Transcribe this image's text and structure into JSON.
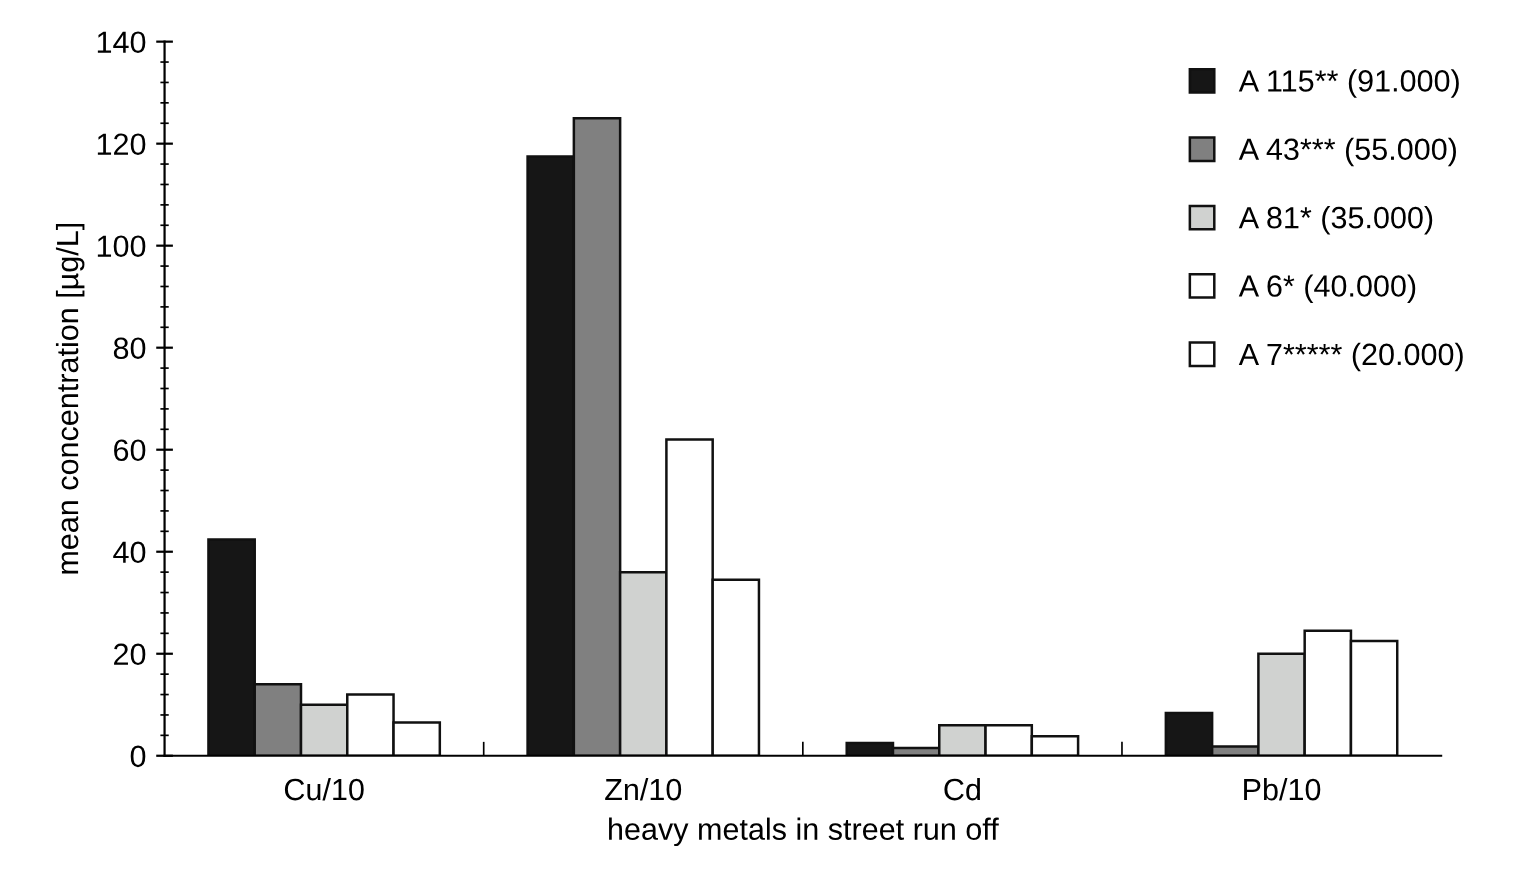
{
  "chart_data": {
    "type": "bar",
    "xlabel": "heavy metals in street run off",
    "ylabel": "mean concentration [µg/L]",
    "categories": [
      "Cu/10",
      "Zn/10",
      "Cd",
      "Pb/10"
    ],
    "series": [
      {
        "name": "A 115** (91.000)",
        "color": "#161616",
        "values": [
          42.4,
          117.5,
          2.5,
          8.4
        ]
      },
      {
        "name": "A 43*** (55.000)",
        "color": "#808080",
        "values": [
          14,
          125,
          1.5,
          1.8
        ]
      },
      {
        "name": "A 81* (35.000)",
        "color": "#d0d2d0",
        "values": [
          10,
          36,
          6,
          20
        ]
      },
      {
        "name": "A 6* (40.000)",
        "color": "#ffffff",
        "values": [
          12,
          62,
          6,
          24.5
        ]
      },
      {
        "name": "A 7***** (20.000)",
        "color": "#ffffff",
        "values": [
          6.5,
          34.5,
          3.8,
          22.5
        ]
      }
    ],
    "ylim": [
      0,
      140
    ],
    "yticks": [
      0,
      {
        "value": 4,
        "label": null
      },
      {
        "value": 8,
        "label": null
      },
      {
        "value": 12,
        "label": null
      },
      {
        "value": 16,
        "label": null
      },
      20,
      {
        "value": 24,
        "label": null
      },
      {
        "value": 28,
        "label": null
      },
      {
        "value": 32,
        "label": null
      },
      {
        "value": 36,
        "label": null
      },
      40,
      {
        "value": 44,
        "label": null
      },
      {
        "value": 48,
        "label": null
      },
      {
        "value": 52,
        "label": null
      },
      {
        "value": 56,
        "label": null
      },
      60,
      {
        "value": 64,
        "label": null
      },
      {
        "value": 68,
        "label": null
      },
      {
        "value": 72,
        "label": null
      },
      {
        "value": 76,
        "label": null
      },
      80,
      {
        "value": 84,
        "label": null
      },
      {
        "value": 88,
        "label": null
      },
      {
        "value": 92,
        "label": null
      },
      {
        "value": 96,
        "label": null
      },
      100,
      {
        "value": 104,
        "label": null
      },
      {
        "value": 108,
        "label": null
      },
      {
        "value": 112,
        "label": null
      },
      {
        "value": 116,
        "label": null
      },
      120,
      {
        "value": 124,
        "label": null
      },
      {
        "value": 128,
        "label": null
      },
      {
        "value": 132,
        "label": null
      },
      {
        "value": 136,
        "label": null
      },
      140
    ],
    "grid": false,
    "legend": "top right"
  }
}
